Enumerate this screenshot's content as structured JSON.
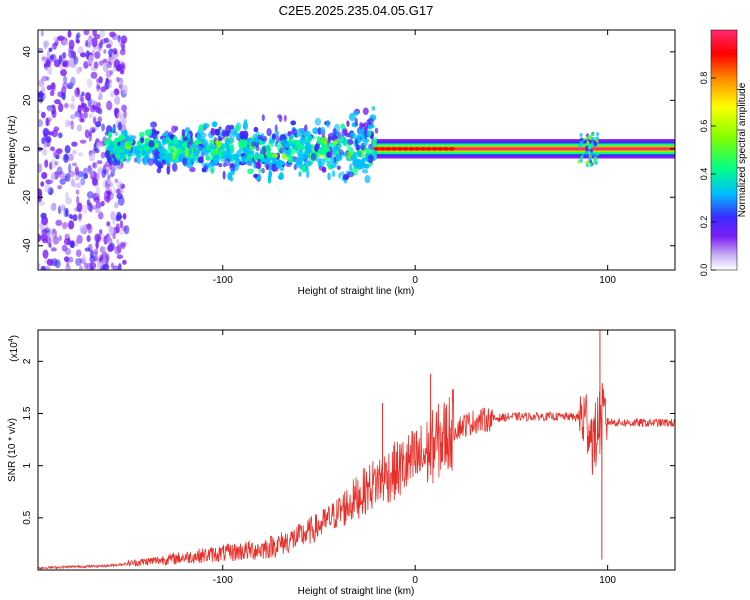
{
  "title": "C2E5.2025.235.04.05.G17",
  "chart_data": [
    {
      "type": "heatmap",
      "name": "spectrogram",
      "xlabel": "Height of straight line (km)",
      "ylabel": "Frequency (Hz)",
      "xlim": [
        -196,
        135
      ],
      "ylim": [
        -50,
        49
      ],
      "xticks": [
        -100,
        0,
        100
      ],
      "yticks": [
        -40,
        -20,
        0,
        20,
        40
      ],
      "colorbar": {
        "label": "Normalized spectral amplitude",
        "range": [
          0.0,
          1.0
        ],
        "ticks": [
          0.0,
          0.2,
          0.4,
          0.6,
          0.8
        ]
      },
      "features": [
        {
          "description": "scattered low-amplitude noise",
          "x_range": [
            -196,
            -150
          ],
          "freq_range": [
            -50,
            49
          ],
          "amplitude": 0.08
        },
        {
          "description": "broad moderate-amplitude band",
          "x_range": [
            -160,
            -20
          ],
          "freq_range": [
            -15,
            15
          ],
          "amplitude": 0.25
        },
        {
          "description": "narrow high-amplitude line",
          "x_range": [
            -20,
            135
          ],
          "freq_range": [
            -2,
            2
          ],
          "amplitude": 0.95
        },
        {
          "description": "disturbance",
          "x_range": [
            85,
            95
          ],
          "freq_range": [
            -10,
            8
          ],
          "amplitude": 0.6
        }
      ]
    },
    {
      "type": "line",
      "name": "snr",
      "xlabel": "Height of straight line (km)",
      "ylabel": "SNR (10 * v/v)",
      "y_multiplier": "(x10",
      "y_multiplier_exp": "4",
      "xlim": [
        -196,
        135
      ],
      "ylim": [
        0,
        2.3
      ],
      "xticks": [
        -100,
        0,
        100
      ],
      "yticks": [
        0.5,
        1.0,
        1.5,
        2.0
      ],
      "color": "#e8302a",
      "x": [
        -196,
        -180,
        -160,
        -150,
        -140,
        -120,
        -100,
        -80,
        -70,
        -60,
        -50,
        -40,
        -30,
        -20,
        -10,
        0,
        5,
        10,
        20,
        30,
        40,
        50,
        60,
        70,
        80,
        85,
        90,
        93,
        95,
        97,
        100,
        110,
        120,
        135
      ],
      "y": [
        0.02,
        0.03,
        0.04,
        0.06,
        0.08,
        0.12,
        0.16,
        0.2,
        0.25,
        0.32,
        0.42,
        0.55,
        0.7,
        0.85,
        0.95,
        1.05,
        1.1,
        1.2,
        1.35,
        1.42,
        1.45,
        1.47,
        1.47,
        1.47,
        1.47,
        1.46,
        1.42,
        1.2,
        1.4,
        1.45,
        1.42,
        1.41,
        1.41,
        1.41
      ],
      "spikes": [
        {
          "x": 8,
          "y": 1.88
        },
        {
          "x": -17,
          "y": 1.6
        },
        {
          "x": 96,
          "y": 2.35
        },
        {
          "x": 97,
          "y": 0.1
        }
      ]
    }
  ],
  "colors": {
    "jet_stops": [
      "#ffffff",
      "#c9b3f5",
      "#7b1ff7",
      "#3b2bff",
      "#00bfff",
      "#00ff88",
      "#7fff00",
      "#ffff00",
      "#ff8800",
      "#ff0000",
      "#ff2a6d"
    ],
    "snr_line": "#e8302a"
  }
}
